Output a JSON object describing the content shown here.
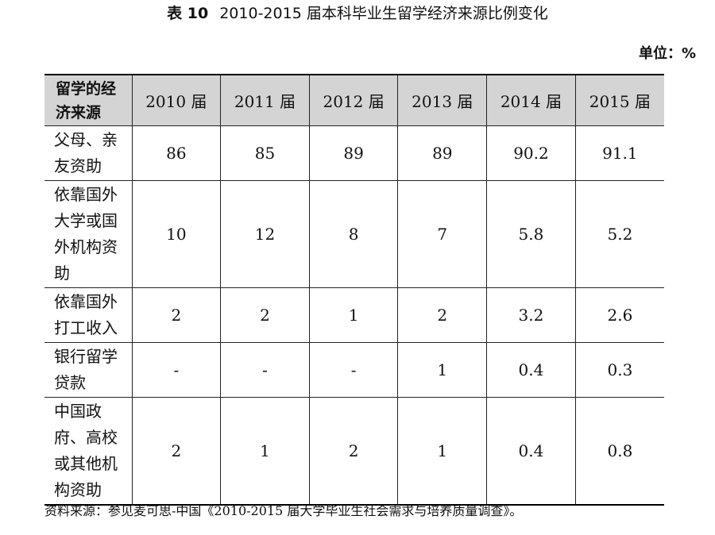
{
  "title": {
    "label": "表 10",
    "text": "2010-2015 届本科毕业生留学经济来源比例变化"
  },
  "unit": "单位：%",
  "table": {
    "header": {
      "first": "留学的经济来源",
      "years": [
        "2010 届",
        "2011 届",
        "2012 届",
        "2013 届",
        "2014 届",
        "2015 届"
      ]
    },
    "rows": [
      {
        "label": "父母、亲友资助",
        "values": [
          "86",
          "85",
          "89",
          "89",
          "90.2",
          "91.1"
        ]
      },
      {
        "label": "依靠国外大学或国外机构资助",
        "values": [
          "10",
          "12",
          "8",
          "7",
          "5.8",
          "5.2"
        ]
      },
      {
        "label": "依靠国外打工收入",
        "values": [
          "2",
          "2",
          "1",
          "2",
          "3.2",
          "2.6"
        ]
      },
      {
        "label": "银行留学贷款",
        "values": [
          "-",
          "-",
          "-",
          "1",
          "0.4",
          "0.3"
        ]
      },
      {
        "label": "中国政府、高校或其他机构资助",
        "values": [
          "2",
          "1",
          "2",
          "1",
          "0.4",
          "0.8"
        ]
      }
    ]
  },
  "source": "资料来源：参见麦可思-中国《2010-2015 届大学毕业生社会需求与培养质量调查》。"
}
